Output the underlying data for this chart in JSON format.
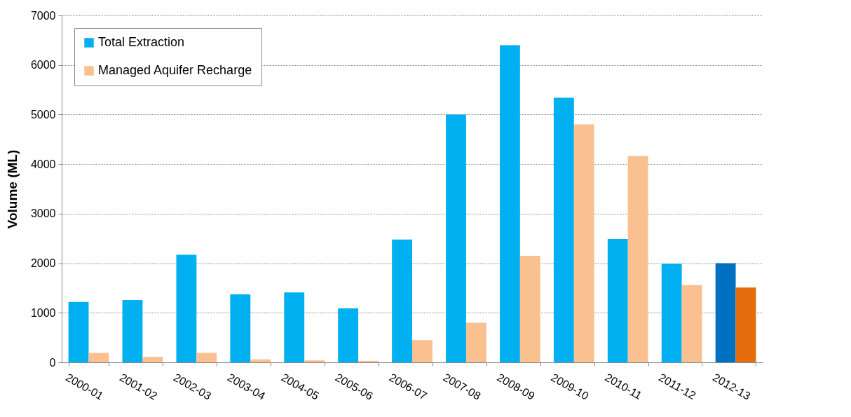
{
  "chart_data": {
    "type": "bar",
    "ylabel": "Volume (ML)",
    "categories": [
      "2000-01",
      "2001-02",
      "2002-03",
      "2003-04",
      "2004-05",
      "2005-06",
      "2006-07",
      "2007-08",
      "2008-09",
      "2009-10",
      "2010-11",
      "2011-12",
      "2012-13"
    ],
    "series": [
      {
        "name": "Total Extraction",
        "color": "#00b0f0",
        "colors": [
          "#00b0f0",
          "#00b0f0",
          "#00b0f0",
          "#00b0f0",
          "#00b0f0",
          "#00b0f0",
          "#00b0f0",
          "#00b0f0",
          "#00b0f0",
          "#00b0f0",
          "#00b0f0",
          "#00b0f0",
          "#0070c0"
        ],
        "values": [
          1220,
          1260,
          2170,
          1370,
          1410,
          1090,
          2480,
          5000,
          6400,
          5340,
          2490,
          1990,
          2000
        ]
      },
      {
        "name": "Managed Aquifer Recharge",
        "color": "#fac090",
        "colors": [
          "#fac090",
          "#fac090",
          "#fac090",
          "#fac090",
          "#fac090",
          "#fac090",
          "#fac090",
          "#fac090",
          "#fac090",
          "#fac090",
          "#fac090",
          "#fac090",
          "#e46c0a"
        ],
        "values": [
          190,
          110,
          190,
          60,
          40,
          30,
          450,
          800,
          2150,
          4800,
          4160,
          1560,
          1510
        ]
      }
    ],
    "ylim": [
      0,
      7000
    ],
    "yticks": [
      0,
      1000,
      2000,
      3000,
      4000,
      5000,
      6000,
      7000
    ],
    "grid": "y",
    "legend": "top left"
  }
}
